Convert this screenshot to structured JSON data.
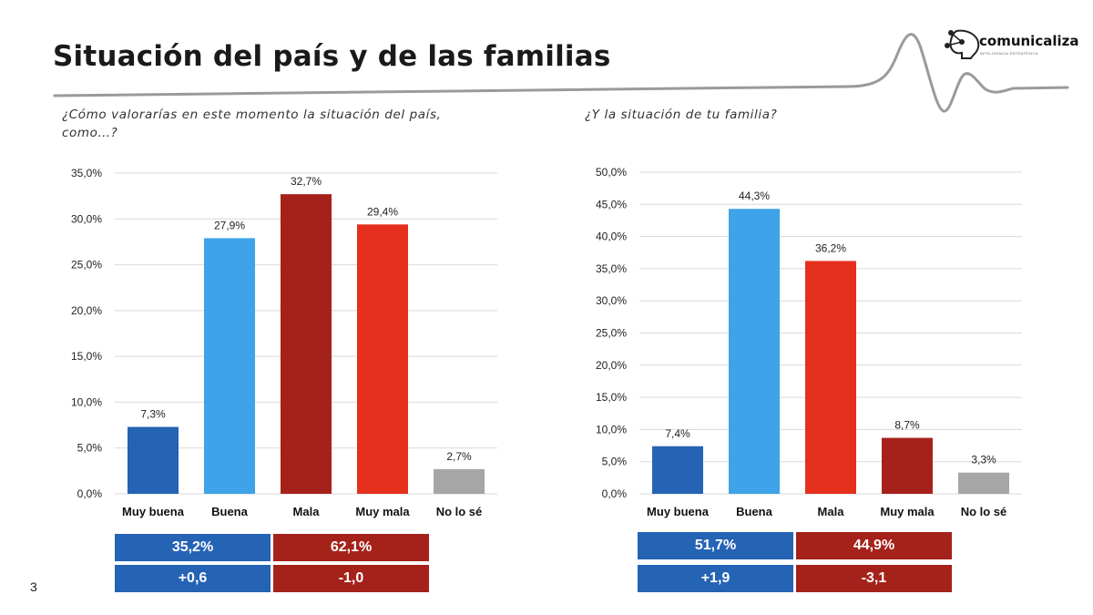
{
  "page": {
    "title": "Situación del país y de las familias",
    "page_number": "3"
  },
  "logo": {
    "name": "comunicaliza",
    "tagline": "INTELIGENCIA ESTRATÉGICA"
  },
  "colors": {
    "dark_blue": "#2563b5",
    "light_blue": "#3ea3e8",
    "dark_red": "#a5221a",
    "red": "#e5301e",
    "gray": "#a6a6a6",
    "summary_blue": "#2563b5",
    "summary_red": "#a5221a"
  },
  "chart_data": [
    {
      "type": "bar",
      "title": "¿Cómo valorarías en este momento la situación del país, como…?",
      "title_lines": [
        "¿Cómo valorarías en este momento la situación del país,",
        "como…?"
      ],
      "categories": [
        "Muy buena",
        "Buena",
        "Mala",
        "Muy mala",
        "No lo sé"
      ],
      "values": [
        7.3,
        27.9,
        32.7,
        29.4,
        2.7
      ],
      "value_labels": [
        "7,3%",
        "27,9%",
        "32,7%",
        "29,4%",
        "2,7%"
      ],
      "bar_colors": [
        "#2563b5",
        "#3ea3e8",
        "#a5221a",
        "#e5301e",
        "#a6a6a6"
      ],
      "ylim": [
        0,
        35
      ],
      "yticks": [
        0,
        5,
        10,
        15,
        20,
        25,
        30,
        35
      ],
      "ytick_labels": [
        "0,0%",
        "5,0%",
        "10,0%",
        "15,0%",
        "20,0%",
        "25,0%",
        "30,0%",
        "35,0%"
      ],
      "grid": true,
      "summary": {
        "positive_total": "35,2%",
        "negative_total": "62,1%",
        "positive_change": "+0,6",
        "negative_change": "-1,0"
      }
    },
    {
      "type": "bar",
      "title": "¿Y la situación de tu familia?",
      "title_lines": [
        "¿Y la situación de tu familia?"
      ],
      "categories": [
        "Muy buena",
        "Buena",
        "Mala",
        "Muy mala",
        "No lo sé"
      ],
      "values": [
        7.4,
        44.3,
        36.2,
        8.7,
        3.3
      ],
      "value_labels": [
        "7,4%",
        "44,3%",
        "36,2%",
        "8,7%",
        "3,3%"
      ],
      "bar_colors": [
        "#2563b5",
        "#3ea3e8",
        "#e5301e",
        "#a5221a",
        "#a6a6a6"
      ],
      "ylim": [
        0,
        50
      ],
      "yticks": [
        0,
        5,
        10,
        15,
        20,
        25,
        30,
        35,
        40,
        45,
        50
      ],
      "ytick_labels": [
        "0,0%",
        "5,0%",
        "10,0%",
        "15,0%",
        "20,0%",
        "25,0%",
        "30,0%",
        "35,0%",
        "40,0%",
        "45,0%",
        "50,0%"
      ],
      "grid": true,
      "summary": {
        "positive_total": "51,7%",
        "negative_total": "44,9%",
        "positive_change": "+1,9",
        "negative_change": "-3,1"
      }
    }
  ]
}
